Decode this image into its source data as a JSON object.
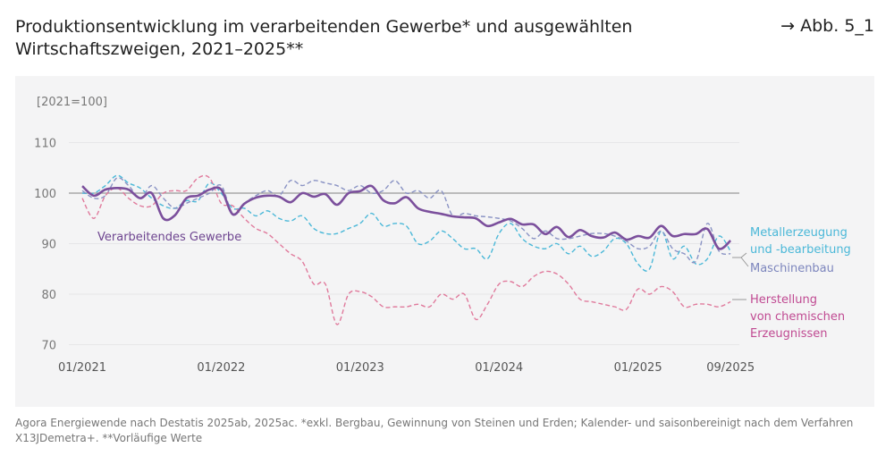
{
  "header": {
    "title": "Produktionsentwicklung im verarbeitenden Gewerbe* und ausgewählten Wirtschaftszweigen, 2021–2025**",
    "figure_ref": "→ Abb. 5_1"
  },
  "source": "Agora Energiewende nach Destatis 2025ab, 2025ac. *exkl. Bergbau, Gewinnung von Steinen und Erden; Kalender- und saisonbereinigt nach dem Verfahren X13JDemetra+. **Vorläufige Werte",
  "chart_data": {
    "type": "line",
    "ylabel": "[2021=100]",
    "ylim": [
      70,
      110
    ],
    "yticks": [
      "110",
      "100",
      "90",
      "80",
      "70"
    ],
    "reference_line": 100,
    "xticks": [
      "01/2021",
      "01/2022",
      "01/2023",
      "01/2024",
      "01/2025",
      "09/2025"
    ],
    "x_start": "01/2021",
    "x_end": "09/2025",
    "x_step": "monthly",
    "series": [
      {
        "name": "Metallerzeugung und -bearbeitung",
        "color": "#4bb8d8",
        "style": "dashed",
        "values": [
          100,
          100,
          101.5,
          103.5,
          102,
          101,
          99,
          97.5,
          97,
          98.5,
          98.5,
          102,
          100,
          97,
          97,
          95.5,
          96.5,
          95,
          94.5,
          95.5,
          93,
          92,
          92,
          93,
          94,
          96,
          93.5,
          94,
          93.5,
          90,
          90.5,
          92.5,
          91,
          89,
          89,
          87,
          92,
          94,
          91,
          89.5,
          89,
          90,
          88,
          89.5,
          87.5,
          88.5,
          91,
          90,
          86,
          85,
          92.5,
          87,
          89.5,
          86,
          87,
          91.5,
          88.5
        ]
      },
      {
        "name": "Maschinenbau",
        "color": "#8a93c4",
        "style": "dashed",
        "values": [
          100.5,
          99,
          99.5,
          103,
          101.5,
          99,
          101.5,
          99,
          97,
          98,
          99,
          100,
          101.5,
          96,
          98,
          99.5,
          100.5,
          99.5,
          102.5,
          101.5,
          102.5,
          102,
          101.5,
          100.5,
          101.5,
          100,
          100.5,
          102.5,
          100,
          100.5,
          99,
          100.5,
          95.5,
          96,
          95.5,
          95.3,
          95,
          94.5,
          93,
          91,
          92.5,
          91,
          91,
          91.5,
          92,
          92,
          91.5,
          90.5,
          89,
          89.5,
          92.5,
          89,
          88,
          86.5,
          94,
          88.5,
          88
        ]
      },
      {
        "name": "Herstellung von chemischen Erzeugnissen",
        "color": "#e07a9c",
        "label_color": "#c04a92",
        "style": "dashed",
        "values": [
          99,
          95,
          99.5,
          101,
          99,
          97.5,
          97.5,
          100,
          100.5,
          100.5,
          103,
          103,
          98,
          97.5,
          95,
          93,
          92,
          90,
          88,
          86.5,
          82,
          82,
          74,
          80,
          80.5,
          79.5,
          77.5,
          77.5,
          77.5,
          78,
          77.5,
          80,
          79,
          80,
          75,
          78,
          82,
          82.5,
          81.5,
          83.5,
          84.5,
          84,
          82,
          79,
          78.5,
          78,
          77.5,
          77,
          81,
          80,
          81.5,
          80.5,
          77.5,
          78,
          78,
          77.5,
          78.5
        ]
      },
      {
        "name": "Verarbeitendes Gewerbe",
        "color": "#7b4f9c",
        "style": "solid",
        "values": [
          101.4,
          99.5,
          100.7,
          101,
          100.7,
          99,
          100,
          95,
          95.6,
          99,
          99.5,
          100.7,
          100.7,
          95.8,
          97.9,
          99.1,
          99.5,
          99.3,
          98.2,
          100,
          99.3,
          99.8,
          97.7,
          100,
          100.4,
          101.4,
          98.6,
          98,
          99.2,
          97,
          96.3,
          95.9,
          95.4,
          95.2,
          95,
          93.5,
          94.2,
          94.9,
          93.8,
          93.8,
          91.9,
          93.3,
          91.3,
          92.7,
          91.5,
          91.2,
          92.2,
          90.8,
          91.5,
          91.2,
          93.5,
          91.5,
          91.9,
          91.9,
          92.9,
          89,
          90.6
        ]
      }
    ]
  }
}
